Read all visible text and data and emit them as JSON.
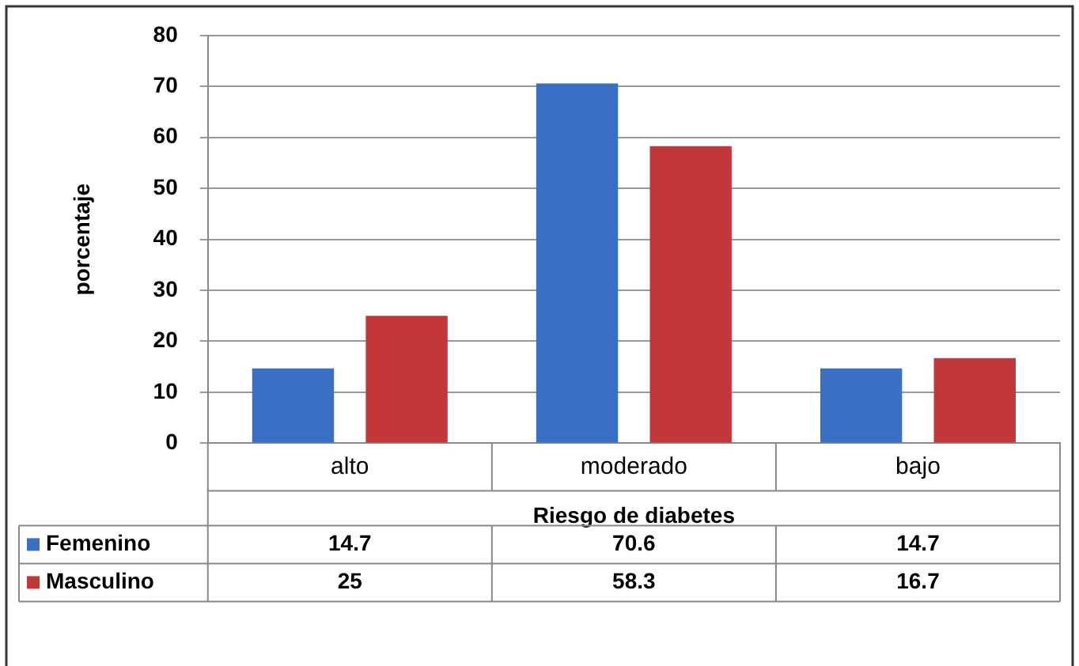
{
  "chart_data": {
    "type": "bar",
    "categories": [
      "alto",
      "moderado",
      "bajo"
    ],
    "xlabel": "Riesgo de diabetes",
    "ylabel": "porcentaje",
    "series": [
      {
        "name": "Femenino",
        "color": "#3b6fc4",
        "values": [
          14.7,
          70.6,
          14.7
        ]
      },
      {
        "name": "Masculino",
        "color": "#c2383a",
        "values": [
          25,
          58.3,
          16.7
        ]
      }
    ],
    "ylim": [
      0,
      80
    ],
    "yticks": [
      0,
      10,
      20,
      30,
      40,
      50,
      60,
      70,
      80
    ],
    "grid": "y",
    "legend": "bottom",
    "data_labels": true
  }
}
